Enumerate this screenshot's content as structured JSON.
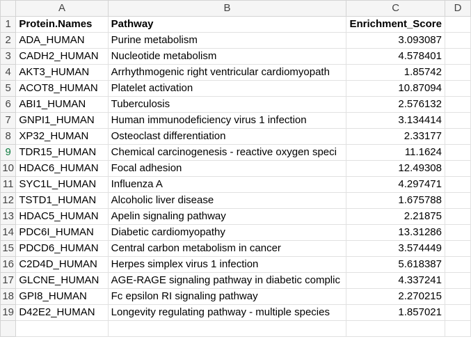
{
  "columns": [
    "A",
    "B",
    "C",
    "D"
  ],
  "header": {
    "protein": "Protein.Names",
    "pathway": "Pathway",
    "score": "Enrichment_Score"
  },
  "rows": [
    {
      "protein": "ADA_HUMAN",
      "pathway": "Purine metabolism",
      "score": "3.093087"
    },
    {
      "protein": "CADH2_HUMAN",
      "pathway": "Nucleotide metabolism",
      "score": "4.578401"
    },
    {
      "protein": "AKT3_HUMAN",
      "pathway": "Arrhythmogenic right ventricular cardiomyopath",
      "score": "1.85742"
    },
    {
      "protein": "ACOT8_HUMAN",
      "pathway": "Platelet activation",
      "score": "10.87094"
    },
    {
      "protein": "ABI1_HUMAN",
      "pathway": "Tuberculosis",
      "score": "2.576132"
    },
    {
      "protein": "GNPI1_HUMAN",
      "pathway": "Human immunodeficiency virus 1 infection",
      "score": "3.134414"
    },
    {
      "protein": "XP32_HUMAN",
      "pathway": "Osteoclast differentiation",
      "score": "2.33177"
    },
    {
      "protein": "TDR15_HUMAN",
      "pathway": "Chemical carcinogenesis - reactive oxygen speci",
      "score": "11.1624"
    },
    {
      "protein": "HDAC6_HUMAN",
      "pathway": "Focal adhesion",
      "score": "12.49308"
    },
    {
      "protein": "SYC1L_HUMAN",
      "pathway": "Influenza A",
      "score": "4.297471"
    },
    {
      "protein": "TSTD1_HUMAN",
      "pathway": "Alcoholic liver disease",
      "score": "1.675788"
    },
    {
      "protein": "HDAC5_HUMAN",
      "pathway": "Apelin signaling pathway",
      "score": "2.21875"
    },
    {
      "protein": "PDC6I_HUMAN",
      "pathway": "Diabetic cardiomyopathy",
      "score": "13.31286"
    },
    {
      "protein": "PDCD6_HUMAN",
      "pathway": "Central carbon metabolism in cancer",
      "score": "3.574449"
    },
    {
      "protein": "C2D4D_HUMAN",
      "pathway": "Herpes simplex virus 1 infection",
      "score": "5.618387"
    },
    {
      "protein": "GLCNE_HUMAN",
      "pathway": "AGE-RAGE signaling pathway in diabetic complic",
      "score": "4.337241"
    },
    {
      "protein": "GPI8_HUMAN",
      "pathway": "Fc epsilon RI signaling pathway",
      "score": "2.270215"
    },
    {
      "protein": "D42E2_HUMAN",
      "pathway": "Longevity regulating pathway - multiple species",
      "score": "1.857021"
    }
  ],
  "active_row_number": 9,
  "colors": {
    "active": "#107c41",
    "header_bg": "#f5f5f5",
    "gridline": "#e1e1e1"
  }
}
